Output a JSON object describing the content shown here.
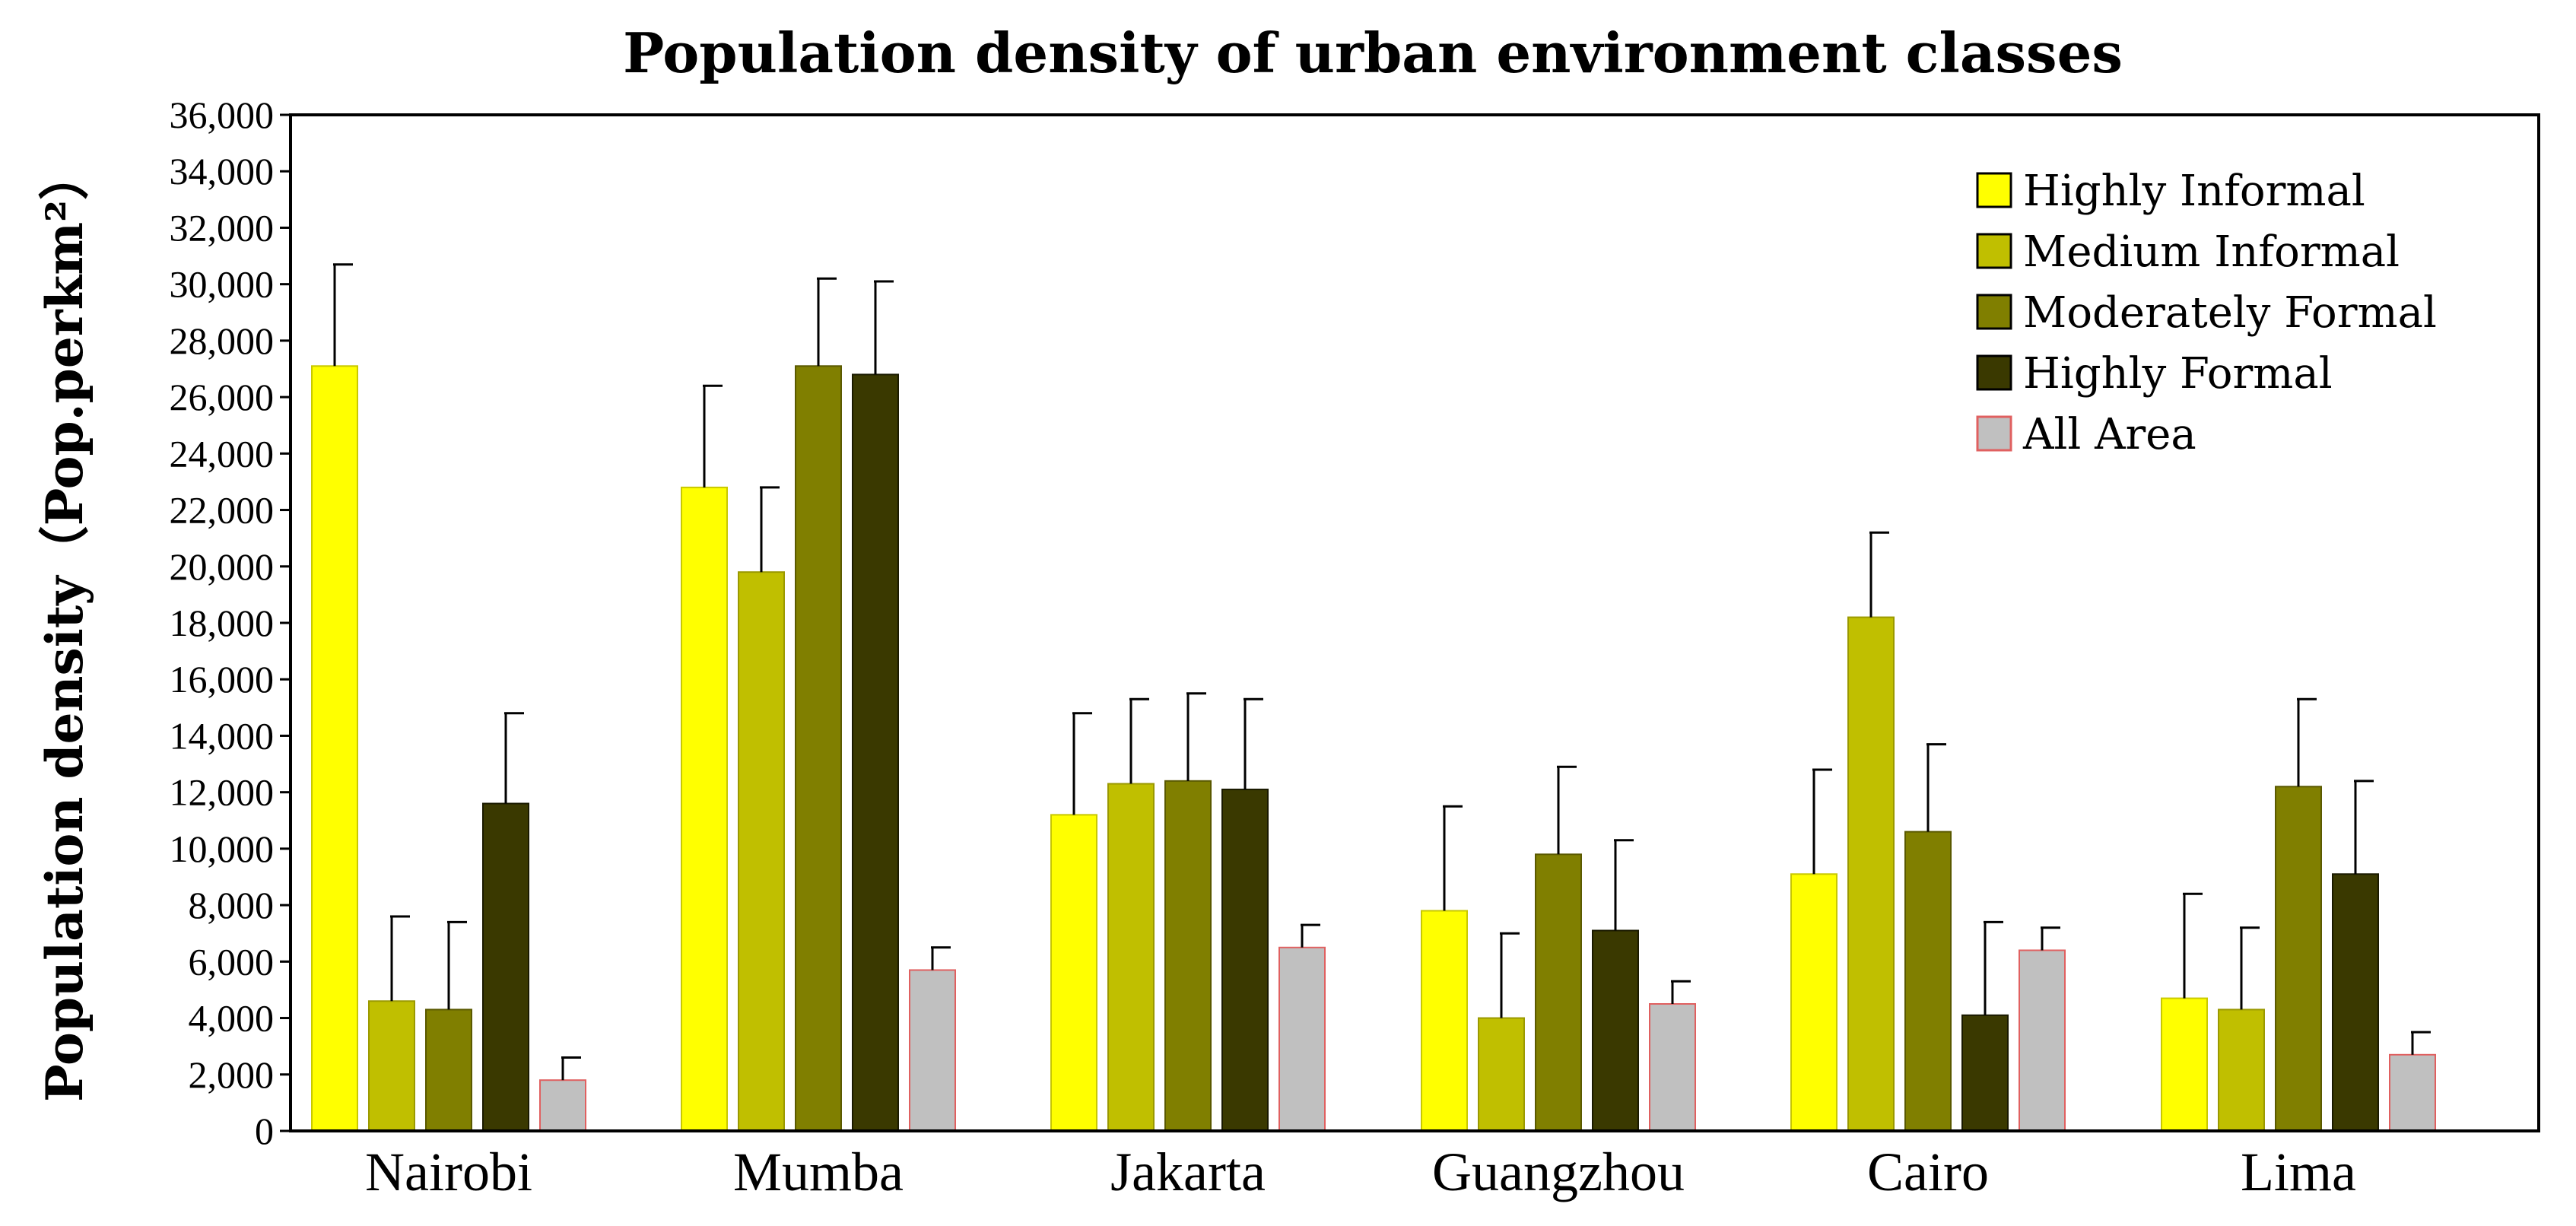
{
  "chart_data": {
    "type": "bar",
    "title": "Population density of urban environment classes",
    "xlabel": "",
    "ylabel": "Population density（Pop.perkm²）",
    "ylim": [
      0,
      36000
    ],
    "ytick_step": 2000,
    "categories": [
      "Nairobi",
      "Mumba",
      "Jakarta",
      "Guangzhou",
      "Cairo",
      "Lima"
    ],
    "legend_position": "top-right",
    "series": [
      {
        "name": "Highly Informal",
        "color": "#ffff00",
        "edge": "#c8c800",
        "values": [
          27100,
          22800,
          11200,
          7800,
          9100,
          4700
        ],
        "errors": [
          3600,
          3600,
          3600,
          3700,
          3700,
          3700
        ]
      },
      {
        "name": "Medium Informal",
        "color": "#c0bf00",
        "edge": "#9a9900",
        "values": [
          4600,
          19800,
          12300,
          4000,
          18200,
          4300
        ],
        "errors": [
          3000,
          3000,
          3000,
          3000,
          3000,
          2900
        ]
      },
      {
        "name": "Moderately Formal",
        "color": "#807f00",
        "edge": "#5a5900",
        "values": [
          4300,
          27100,
          12400,
          9800,
          10600,
          12200
        ],
        "errors": [
          3100,
          3100,
          3100,
          3100,
          3100,
          3100
        ]
      },
      {
        "name": "Highly Formal",
        "color": "#3a3900",
        "edge": "#1a1a00",
        "values": [
          11600,
          26800,
          12100,
          7100,
          4100,
          9100
        ],
        "errors": [
          3200,
          3300,
          3200,
          3200,
          3300,
          3300
        ]
      },
      {
        "name": "All Area",
        "color": "#c0c0c0",
        "edge": "#e06060",
        "values": [
          1800,
          5700,
          6500,
          4500,
          6400,
          2700
        ],
        "errors": [
          800,
          800,
          800,
          800,
          800,
          800
        ]
      }
    ]
  }
}
